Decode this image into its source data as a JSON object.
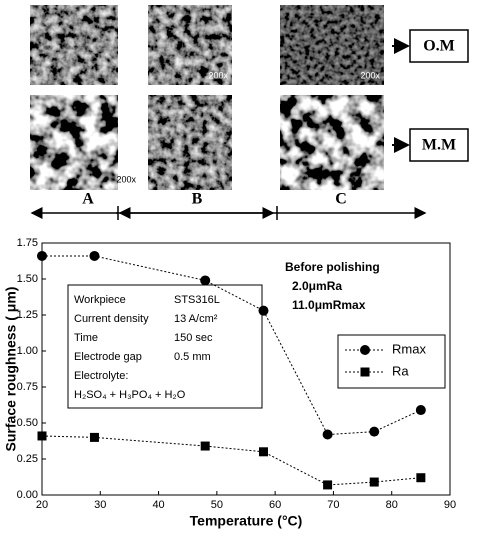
{
  "figure": {
    "micrograph_labels": [
      "200x",
      "200x",
      "200x"
    ],
    "row_labels": [
      "O.M",
      "M.M"
    ],
    "regions": [
      "A",
      "B",
      "C"
    ]
  },
  "chart_data": {
    "type": "line",
    "x_label": "Temperature (°C)",
    "y_label": "Surface roughness ( μm)",
    "xlim": [
      20,
      90
    ],
    "xticks": [
      20,
      30,
      40,
      50,
      60,
      70,
      80,
      90
    ],
    "ylim": [
      0,
      1.75
    ],
    "yticks": [
      {
        "value": 0,
        "label": "0.00"
      },
      {
        "value": 0.25,
        "label": "0.25"
      },
      {
        "value": 0.5,
        "label": "0.50"
      },
      {
        "value": 0.75,
        "label": "0.75"
      },
      {
        "value": 1,
        "label": "1.00"
      },
      {
        "value": 1.25,
        "label": "1.25"
      },
      {
        "value": 1.5,
        "label": "1.50"
      },
      {
        "value": 1.75,
        "label": "1.75"
      }
    ],
    "x": [
      20,
      29,
      48,
      58,
      69,
      77,
      85
    ],
    "series": [
      {
        "name": "Rmax",
        "color": "#000000",
        "marker": "circle",
        "values": [
          1.66,
          1.66,
          1.49,
          1.28,
          0.42,
          0.44,
          0.59
        ]
      },
      {
        "name": "Ra",
        "color": "#000000",
        "marker": "square",
        "values": [
          0.41,
          0.4,
          0.34,
          0.3,
          0.07,
          0.09,
          0.12
        ]
      }
    ],
    "conditions": [
      [
        "Workpiece",
        "STS316L"
      ],
      [
        "Current density",
        "13 A/cm²"
      ],
      [
        "Time",
        "150 sec"
      ],
      [
        "Electrode gap",
        "0.5 mm"
      ],
      [
        "Electrolyte:",
        ""
      ],
      [
        "H₂SO₄ + H₃PO₄ + H₂O",
        ""
      ]
    ],
    "annotation": [
      "Before polishing",
      "2.0μmRa",
      "11.0μmRmax"
    ]
  }
}
